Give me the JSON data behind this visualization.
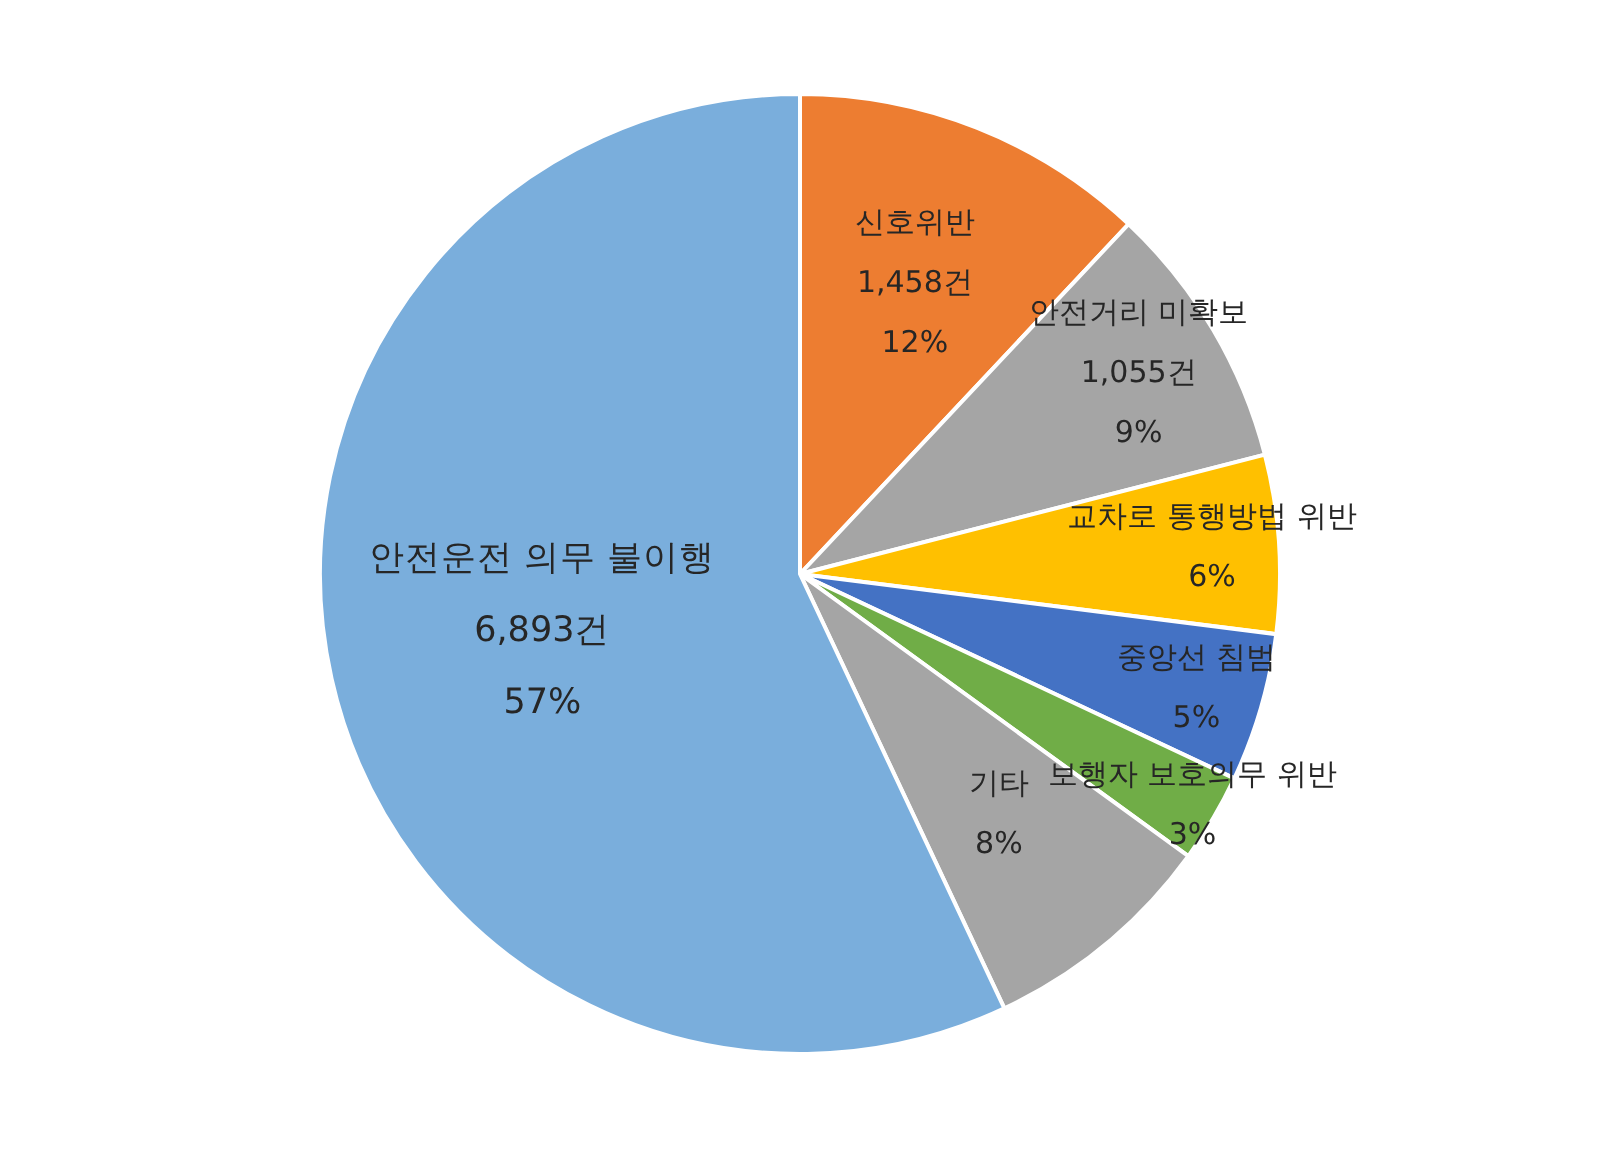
{
  "chart_data": {
    "type": "pie",
    "categories": [
      "신호위반",
      "안전거리 미확보",
      "교차로 통행방법 위반",
      "중앙선 침범",
      "보행자 보호의무 위반",
      "기타",
      "안전운전 의무 불이행"
    ],
    "values": [
      12,
      9,
      6,
      5,
      3,
      8,
      57
    ],
    "colors": [
      "#ed7d31",
      "#a5a5a5",
      "#ffc000",
      "#4472c4",
      "#70ad47",
      "#a5a5a5",
      "#7aaedc"
    ],
    "value_labels": [
      "1,458건\n12%",
      "1,055건\n9%",
      "6%",
      "5%",
      "3%",
      "8%",
      "6,893건\n57%"
    ]
  }
}
